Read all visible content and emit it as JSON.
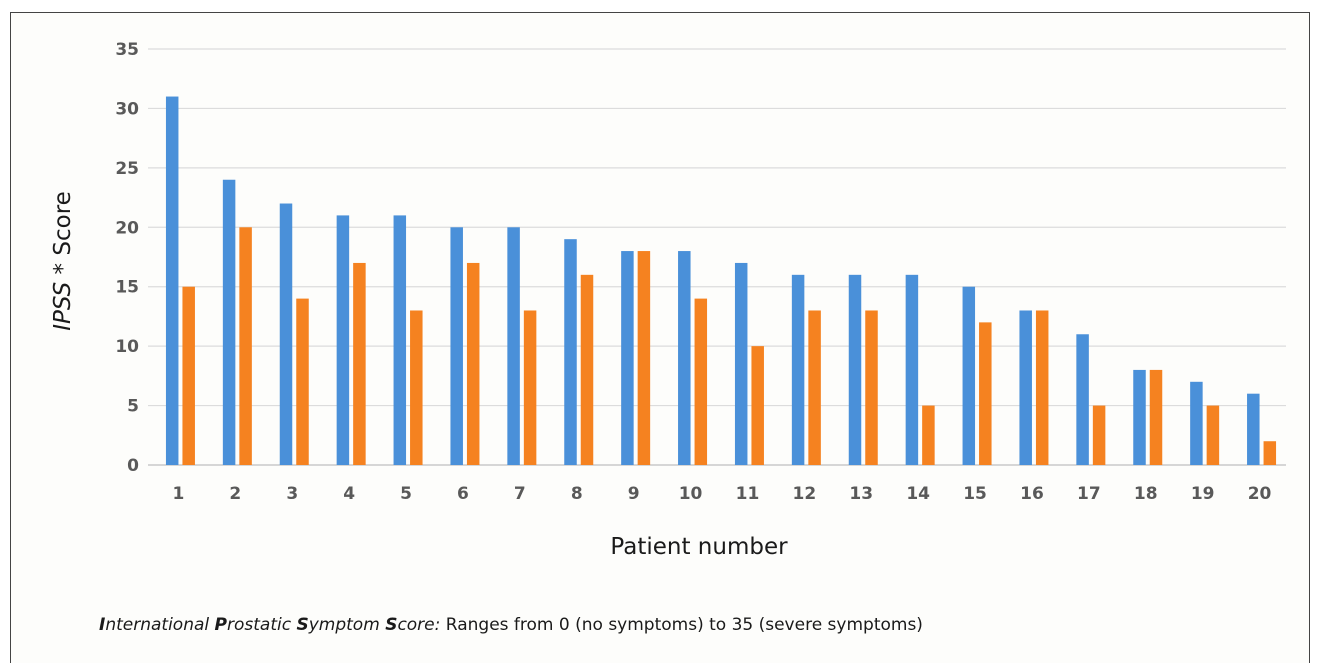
{
  "chart_data": {
    "type": "bar",
    "categories": [
      "1",
      "2",
      "3",
      "4",
      "5",
      "6",
      "7",
      "8",
      "9",
      "10",
      "11",
      "12",
      "13",
      "14",
      "15",
      "16",
      "17",
      "18",
      "19",
      "20"
    ],
    "series": [
      {
        "values": [
          31,
          24,
          22,
          21,
          21,
          20,
          20,
          19,
          18,
          18,
          17,
          16,
          16,
          16,
          15,
          13,
          11,
          8,
          7,
          6
        ],
        "color": "#4a90d9"
      },
      {
        "values": [
          15,
          20,
          14,
          17,
          13,
          17,
          13,
          16,
          18,
          14,
          10,
          13,
          13,
          5,
          12,
          13,
          5,
          8,
          5,
          2
        ],
        "color": "#f58220"
      }
    ],
    "xlabel": "Patient number",
    "ylabel": {
      "italic": "IPSS",
      "rest": " * Score"
    },
    "ylim": [
      0,
      35
    ],
    "yticks": [
      "0",
      "5",
      "10",
      "15",
      "20",
      "25",
      "30",
      "35"
    ],
    "grid": true
  },
  "footnote": {
    "term": [
      {
        "initial": "I",
        "rest": "nternational "
      },
      {
        "initial": "P",
        "rest": "rostatic "
      },
      {
        "initial": "S",
        "rest": "ymptom "
      },
      {
        "initial": "S",
        "rest": "core:"
      }
    ],
    "description": " Ranges from 0 (no symptoms) to 35 (severe symptoms)"
  }
}
